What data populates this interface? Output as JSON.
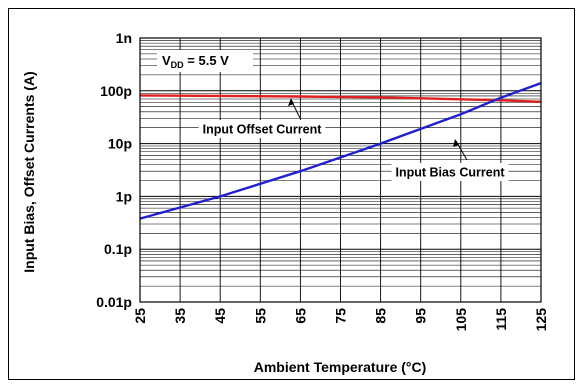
{
  "chart_data": {
    "type": "line",
    "xlabel": "Ambient Temperature (°C)",
    "ylabel": "Input Bias, Offset Currents (A)",
    "x_ticks": [
      25,
      35,
      45,
      55,
      65,
      75,
      85,
      95,
      105,
      115,
      125
    ],
    "xlim": [
      25,
      125
    ],
    "y_scale": "log",
    "y_ticks": [
      1e-14,
      1e-13,
      1e-12,
      1e-11,
      1e-10,
      1e-09
    ],
    "y_tick_labels": [
      "0.01p",
      "0.1p",
      "1p",
      "10p",
      "100p",
      "1n"
    ],
    "ylim": [
      1e-14,
      1e-09
    ],
    "grid": true,
    "condition": {
      "main": "V",
      "sub": "DD",
      "rest": " = 5.5 V"
    },
    "series": [
      {
        "name": "Input Offset Current",
        "color": "#e02020",
        "x": [
          25,
          45,
          65,
          85,
          95,
          105,
          115,
          125
        ],
        "y": [
          8.2e-11,
          8e-11,
          7.8e-11,
          7.5e-11,
          7.2e-11,
          6.9e-11,
          6.6e-11,
          6.2e-11
        ]
      },
      {
        "name": "Input Bias Current",
        "color": "#2020d0",
        "x": [
          25,
          45,
          65,
          85,
          105,
          115,
          125
        ],
        "y": [
          3.8e-13,
          1e-12,
          3e-12,
          1e-11,
          3.6e-11,
          7.4e-11,
          1.4e-10
        ]
      }
    ],
    "annotations": [
      {
        "text": "Input Offset Current",
        "points_to": "Input Offset Current"
      },
      {
        "text": "Input Bias Current",
        "points_to": "Input Bias Current"
      }
    ]
  }
}
